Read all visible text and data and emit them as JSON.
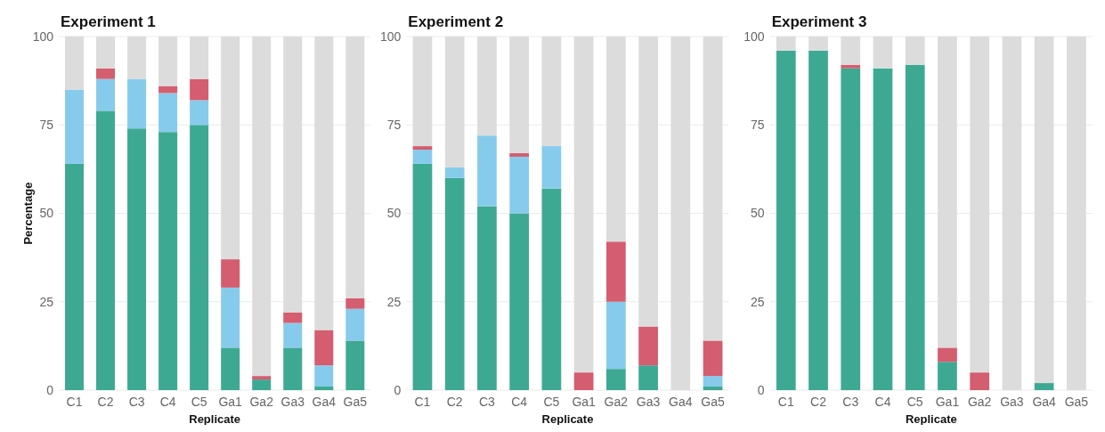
{
  "chart_data": [
    {
      "type": "bar",
      "stacked": true,
      "title": "Experiment 1",
      "xlabel": "Replicate",
      "ylabel": "Percentage",
      "categories": [
        "C1",
        "C2",
        "C3",
        "C4",
        "C5",
        "Ga1",
        "Ga2",
        "Ga3",
        "Ga4",
        "Ga5"
      ],
      "ylim": [
        0,
        100
      ],
      "yticks": [
        0,
        25,
        50,
        75,
        100
      ],
      "grid": "y",
      "series": [
        {
          "color": "#3ea993",
          "values": [
            64,
            79,
            74,
            73,
            75,
            12,
            3,
            12,
            1,
            14
          ]
        },
        {
          "color": "#87cbec",
          "values": [
            21,
            9,
            14,
            11,
            7,
            17,
            0,
            7,
            6,
            9
          ]
        },
        {
          "color": "#d45d6f",
          "values": [
            0,
            3,
            0,
            2,
            6,
            8,
            1,
            3,
            10,
            3
          ]
        },
        {
          "color": "#dcdcdc",
          "values": [
            15,
            9,
            12,
            14,
            12,
            63,
            96,
            78,
            83,
            74
          ]
        }
      ]
    },
    {
      "type": "bar",
      "stacked": true,
      "title": "Experiment 2",
      "xlabel": "Replicate",
      "categories": [
        "C1",
        "C2",
        "C3",
        "C4",
        "C5",
        "Ga1",
        "Ga2",
        "Ga3",
        "Ga4",
        "Ga5"
      ],
      "ylim": [
        0,
        100
      ],
      "yticks": [
        0,
        25,
        50,
        75,
        100
      ],
      "grid": "y",
      "series": [
        {
          "color": "#3ea993",
          "values": [
            64,
            60,
            52,
            50,
            57,
            0,
            6,
            7,
            0,
            1
          ]
        },
        {
          "color": "#87cbec",
          "values": [
            4,
            3,
            20,
            16,
            12,
            0,
            19,
            0,
            0,
            3
          ]
        },
        {
          "color": "#d45d6f",
          "values": [
            1,
            0,
            0,
            1,
            0,
            5,
            17,
            11,
            0,
            10
          ]
        },
        {
          "color": "#dcdcdc",
          "values": [
            31,
            37,
            28,
            33,
            31,
            95,
            58,
            82,
            100,
            86
          ]
        }
      ]
    },
    {
      "type": "bar",
      "stacked": true,
      "title": "Experiment 3",
      "xlabel": "Replicate",
      "categories": [
        "C1",
        "C2",
        "C3",
        "C4",
        "C5",
        "Ga1",
        "Ga2",
        "Ga3",
        "Ga4",
        "Ga5"
      ],
      "ylim": [
        0,
        100
      ],
      "yticks": [
        0,
        25,
        50,
        75,
        100
      ],
      "grid": "y",
      "series": [
        {
          "color": "#3ea993",
          "values": [
            96,
            96,
            91,
            91,
            92,
            8,
            0,
            0,
            2,
            0
          ]
        },
        {
          "color": "#d45d6f",
          "values": [
            0,
            0,
            1,
            0,
            0,
            4,
            5,
            0,
            0,
            0
          ]
        },
        {
          "color": "#dcdcdc",
          "values": [
            4,
            4,
            8,
            9,
            8,
            88,
            95,
            100,
            98,
            100
          ]
        }
      ]
    }
  ]
}
